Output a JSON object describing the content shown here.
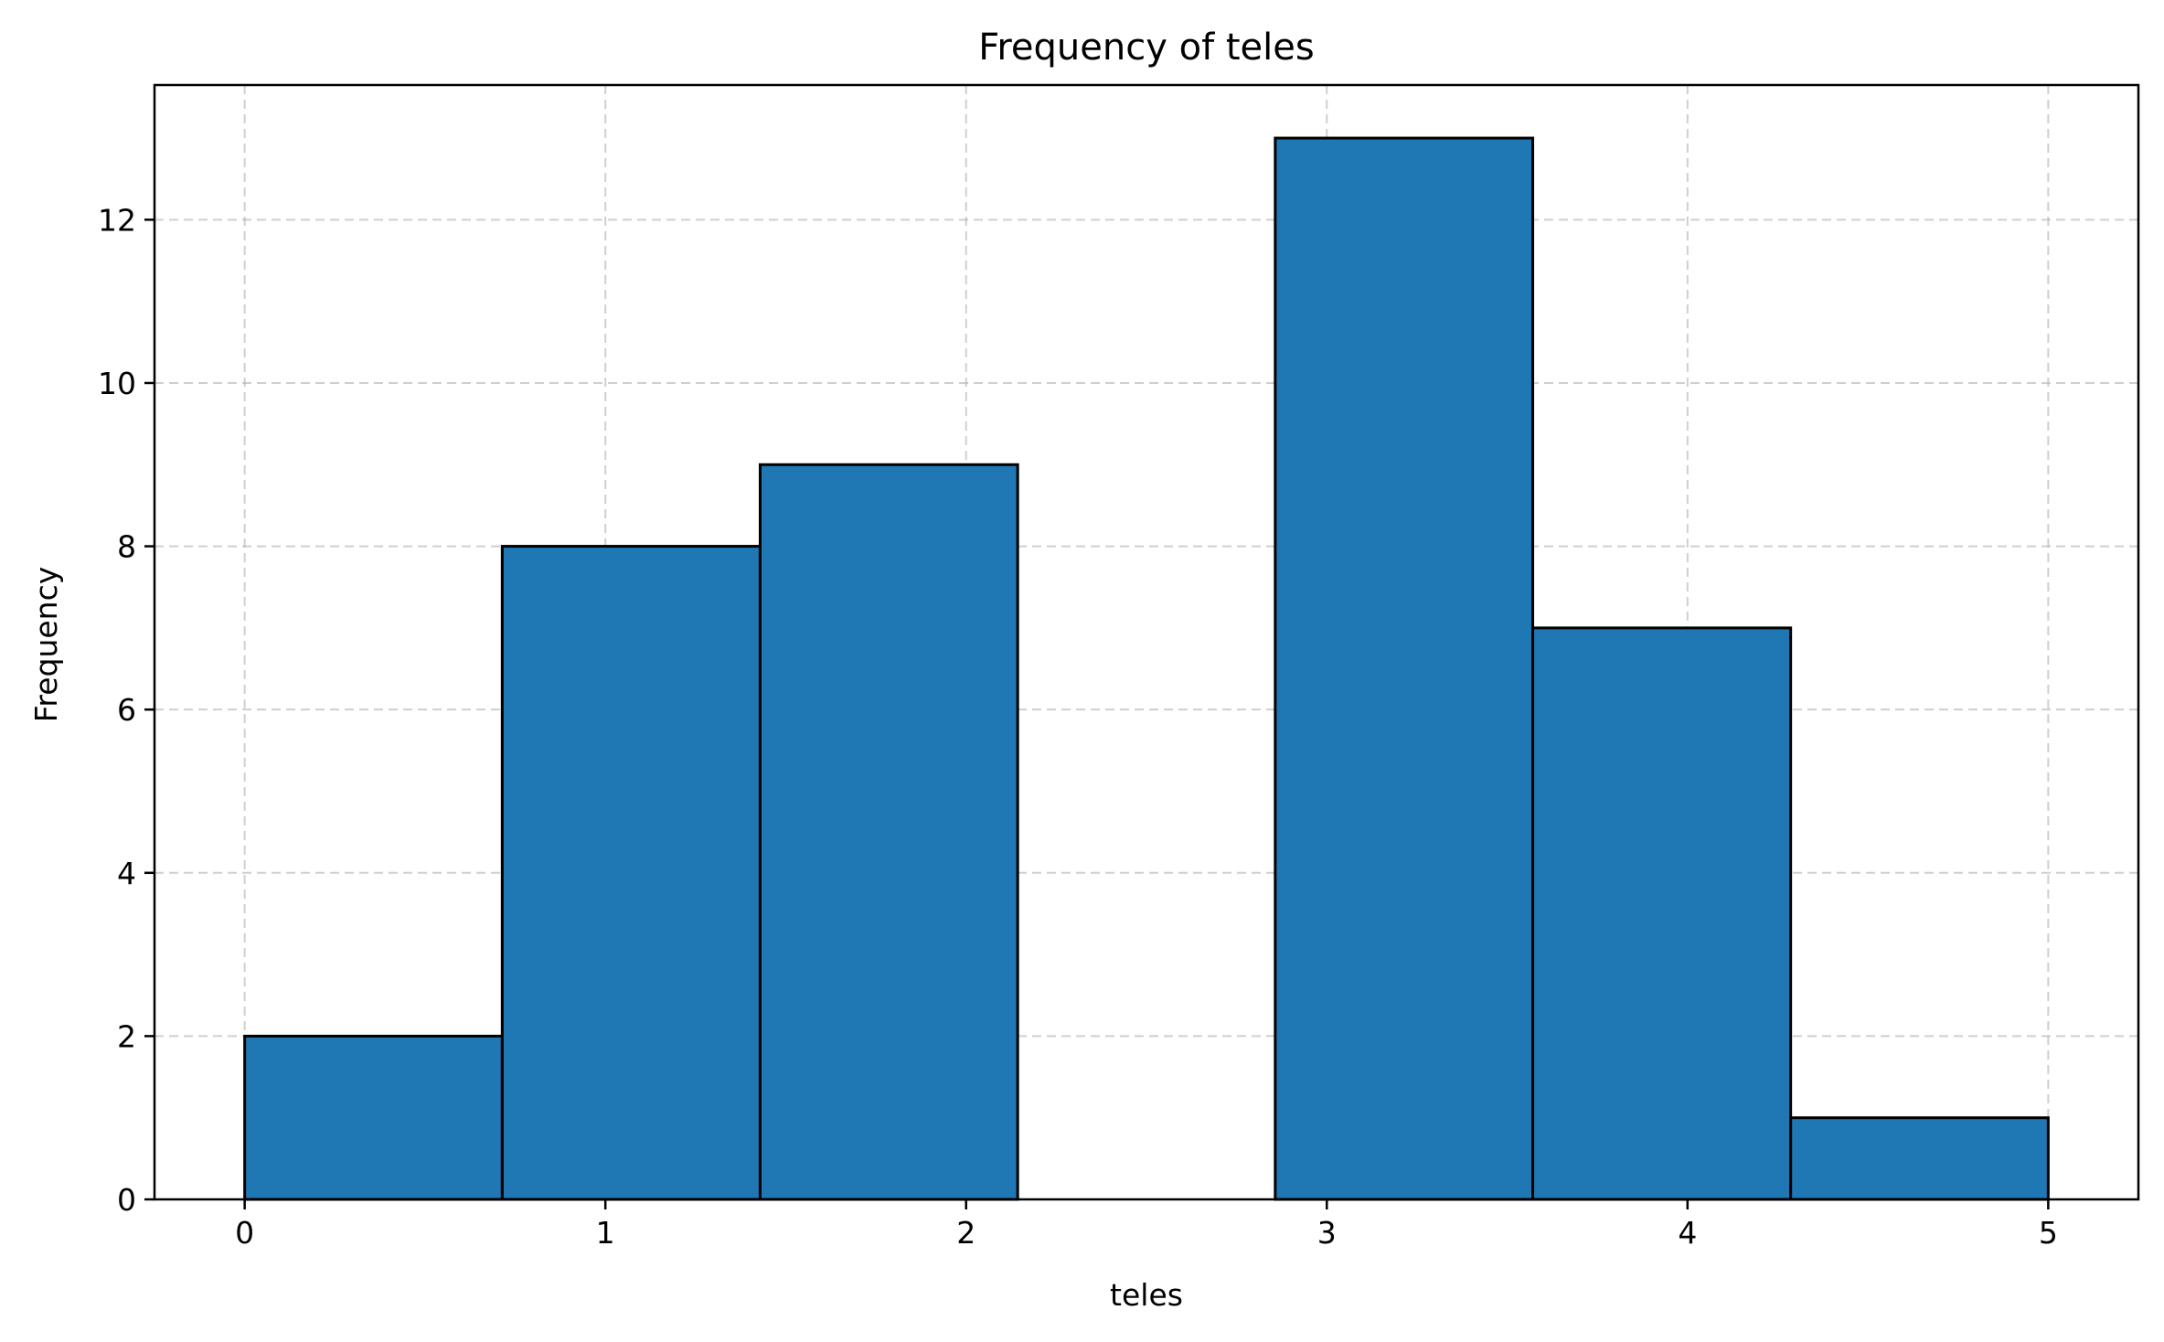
{
  "chart_data": {
    "type": "bar",
    "title": "Frequency of teles",
    "xlabel": "teles",
    "ylabel": "Frequency",
    "xlim": [
      -0.25,
      5.25
    ],
    "ylim": [
      0,
      13.65
    ],
    "xticks": [
      0,
      1,
      2,
      3,
      4,
      5
    ],
    "yticks": [
      0,
      2,
      4,
      6,
      8,
      10,
      12
    ],
    "grid": true,
    "bar_color": "#1f77b4",
    "edge_color": "#000000",
    "bins": [
      {
        "x0": 0.0,
        "x1": 0.714,
        "count": 2
      },
      {
        "x0": 0.714,
        "x1": 1.429,
        "count": 8
      },
      {
        "x0": 1.429,
        "x1": 2.143,
        "count": 9
      },
      {
        "x0": 2.143,
        "x1": 2.857,
        "count": 0
      },
      {
        "x0": 2.857,
        "x1": 3.571,
        "count": 13
      },
      {
        "x0": 3.571,
        "x1": 4.286,
        "count": 7
      },
      {
        "x0": 4.286,
        "x1": 5.0,
        "count": 1
      }
    ]
  }
}
